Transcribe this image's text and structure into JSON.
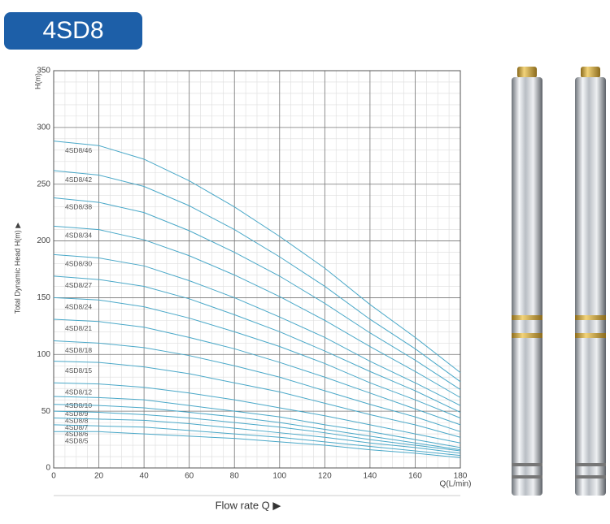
{
  "chart_data": {
    "type": "line",
    "title": "4SD8",
    "y_unit": "H(m)",
    "y_label": "Total Dynamic Head H(m) ▶",
    "x_unit": "Q(L/min)",
    "x_label": "Flow rate Q ▶",
    "x": [
      0,
      20,
      40,
      60,
      80,
      100,
      120,
      140,
      160,
      180
    ],
    "xlim": [
      0,
      180
    ],
    "xticks": [
      0,
      20,
      40,
      60,
      80,
      100,
      120,
      140,
      160,
      180
    ],
    "ylim": [
      0,
      350
    ],
    "yticks": [
      0,
      50,
      100,
      150,
      200,
      250,
      300,
      350
    ],
    "grid": true,
    "series": [
      {
        "name": "4SD8/46",
        "color": "#4aa8c8",
        "values": [
          288,
          284,
          272,
          253,
          230,
          204,
          176,
          144,
          115,
          84
        ]
      },
      {
        "name": "4SD8/42",
        "color": "#4aa8c8",
        "values": [
          262,
          258,
          248,
          231,
          210,
          186,
          160,
          131,
          105,
          76
        ]
      },
      {
        "name": "4SD8/38",
        "color": "#4aa8c8",
        "values": [
          238,
          234,
          225,
          209,
          190,
          169,
          145,
          119,
          95,
          69
        ]
      },
      {
        "name": "4SD8/34",
        "color": "#4aa8c8",
        "values": [
          213,
          210,
          201,
          187,
          170,
          151,
          130,
          107,
          85,
          62
        ]
      },
      {
        "name": "4SD8/30",
        "color": "#4aa8c8",
        "values": [
          188,
          185,
          178,
          165,
          150,
          133,
          115,
          94,
          75,
          55
        ]
      },
      {
        "name": "4SD8/27",
        "color": "#4aa8c8",
        "values": [
          169,
          166,
          160,
          149,
          135,
          120,
          103,
          85,
          68,
          49
        ]
      },
      {
        "name": "4SD8/24",
        "color": "#4aa8c8",
        "values": [
          150,
          148,
          142,
          132,
          120,
          107,
          92,
          75,
          60,
          44
        ]
      },
      {
        "name": "4SD8/21",
        "color": "#4aa8c8",
        "values": [
          131,
          129,
          124,
          115,
          105,
          93,
          80,
          66,
          52,
          38
        ]
      },
      {
        "name": "4SD8/18",
        "color": "#4aa8c8",
        "values": [
          112,
          110,
          106,
          99,
          90,
          80,
          68,
          56,
          45,
          32
        ]
      },
      {
        "name": "4SD8/15",
        "color": "#4aa8c8",
        "values": [
          94,
          93,
          89,
          83,
          75,
          67,
          57,
          47,
          38,
          27
        ]
      },
      {
        "name": "4SD8/12",
        "color": "#4aa8c8",
        "values": [
          75,
          74,
          71,
          66,
          60,
          53,
          46,
          38,
          30,
          22
        ]
      },
      {
        "name": "4SD8/10",
        "color": "#4aa8c8",
        "values": [
          63,
          62,
          60,
          55,
          50,
          45,
          38,
          32,
          25,
          18
        ]
      },
      {
        "name": "4SD8/9",
        "color": "#4aa8c8",
        "values": [
          56,
          55,
          53,
          49,
          45,
          40,
          34,
          28,
          22,
          16
        ]
      },
      {
        "name": "4SD8/8",
        "color": "#4aa8c8",
        "values": [
          50,
          49,
          47,
          44,
          40,
          36,
          31,
          25,
          20,
          15
        ]
      },
      {
        "name": "4SD8/7",
        "color": "#4aa8c8",
        "values": [
          44,
          43,
          42,
          39,
          35,
          31,
          27,
          22,
          18,
          13
        ]
      },
      {
        "name": "4SD8/6",
        "color": "#4aa8c8",
        "values": [
          38,
          37,
          36,
          33,
          30,
          27,
          23,
          19,
          15,
          11
        ]
      },
      {
        "name": "4SD8/5",
        "color": "#4aa8c8",
        "values": [
          32,
          32,
          30,
          28,
          26,
          23,
          20,
          16,
          13,
          9
        ]
      }
    ]
  }
}
